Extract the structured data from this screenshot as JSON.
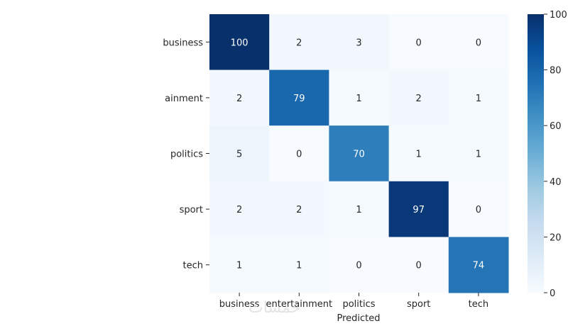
{
  "chart_data": {
    "type": "heatmap",
    "xlabel": "Predicted",
    "ylabel": "",
    "x_categories": [
      "business",
      "entertainment",
      "politics",
      "sport",
      "tech"
    ],
    "y_categories": [
      "business",
      "entertainment",
      "politics",
      "sport",
      "tech"
    ],
    "y_tick_labels_shown": [
      "business",
      "ainment",
      "politics",
      "sport",
      "tech"
    ],
    "values": [
      [
        100,
        2,
        3,
        0,
        0
      ],
      [
        2,
        79,
        1,
        2,
        1
      ],
      [
        5,
        0,
        70,
        1,
        1
      ],
      [
        2,
        2,
        1,
        97,
        0
      ],
      [
        1,
        1,
        0,
        0,
        74
      ]
    ],
    "colormap": "Blues",
    "vmin": 0,
    "vmax": 100,
    "colorbar_ticks": [
      0,
      20,
      40,
      60,
      80,
      100
    ],
    "colors": {
      "low": "#f7fbff",
      "high": "#08306b",
      "dark_text": "#262626",
      "light_text": "#ffffff"
    }
  },
  "watermark": "خمسات"
}
